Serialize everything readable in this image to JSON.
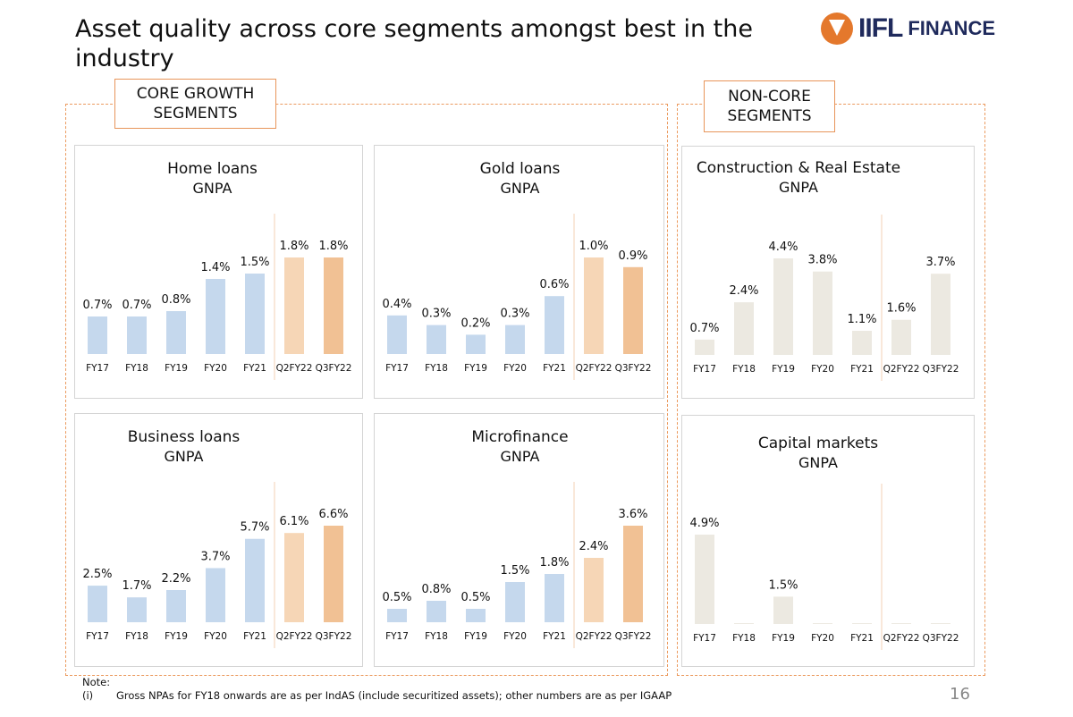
{
  "title": "Asset quality across core segments amongst best in the industry",
  "logo": {
    "brand": "IIFL",
    "sub": "FINANCE"
  },
  "segments": {
    "core": "CORE GROWTH SEGMENTS",
    "noncore": "NON-CORE SEGMENTS"
  },
  "colors": {
    "blue": "#c5d8ed",
    "q2": "#f6d6b6",
    "q3": "#f1c194",
    "beige": "#ece9e1",
    "divider": "#f3d2b5",
    "dash": "#eb9a5e"
  },
  "chart_data": [
    {
      "type": "bar",
      "id": "home",
      "title": "Home loans",
      "subtitle": "GNPA",
      "categories": [
        "FY17",
        "FY18",
        "FY19",
        "FY20",
        "FY21",
        "Q2FY22",
        "Q3FY22"
      ],
      "values": [
        0.7,
        0.7,
        0.8,
        1.4,
        1.5,
        1.8,
        1.8
      ],
      "labels": [
        "0.7%",
        "0.7%",
        "0.8%",
        "1.4%",
        "1.5%",
        "1.8%",
        "1.8%"
      ],
      "palette": "core",
      "unit": "%"
    },
    {
      "type": "bar",
      "id": "gold",
      "title": "Gold loans",
      "subtitle": "GNPA",
      "categories": [
        "FY17",
        "FY18",
        "FY19",
        "FY20",
        "FY21",
        "Q2FY22",
        "Q3FY22"
      ],
      "values": [
        0.4,
        0.3,
        0.2,
        0.3,
        0.6,
        1.0,
        0.9
      ],
      "labels": [
        "0.4%",
        "0.3%",
        "0.2%",
        "0.3%",
        "0.6%",
        "1.0%",
        "0.9%"
      ],
      "palette": "core",
      "unit": "%"
    },
    {
      "type": "bar",
      "id": "construction",
      "title": "Construction & Real Estate",
      "subtitle": "GNPA",
      "categories": [
        "FY17",
        "FY18",
        "FY19",
        "FY20",
        "FY21",
        "Q2FY22",
        "Q3FY22"
      ],
      "values": [
        0.7,
        2.4,
        4.4,
        3.8,
        1.1,
        1.6,
        3.7
      ],
      "labels": [
        "0.7%",
        "2.4%",
        "4.4%",
        "3.8%",
        "1.1%",
        "1.6%",
        "3.7%"
      ],
      "palette": "noncore",
      "unit": "%"
    },
    {
      "type": "bar",
      "id": "business",
      "title": "Business loans",
      "subtitle": "GNPA",
      "categories": [
        "FY17",
        "FY18",
        "FY19",
        "FY20",
        "FY21",
        "Q2FY22",
        "Q3FY22"
      ],
      "values": [
        2.5,
        1.7,
        2.2,
        3.7,
        5.7,
        6.1,
        6.6
      ],
      "labels": [
        "2.5%",
        "1.7%",
        "2.2%",
        "3.7%",
        "5.7%",
        "6.1%",
        "6.6%"
      ],
      "palette": "core",
      "unit": "%"
    },
    {
      "type": "bar",
      "id": "microfinance",
      "title": "Microfinance",
      "subtitle": "GNPA",
      "categories": [
        "FY17",
        "FY18",
        "FY19",
        "FY20",
        "FY21",
        "Q2FY22",
        "Q3FY22"
      ],
      "values": [
        0.5,
        0.8,
        0.5,
        1.5,
        1.8,
        2.4,
        3.6
      ],
      "labels": [
        "0.5%",
        "0.8%",
        "0.5%",
        "1.5%",
        "1.8%",
        "2.4%",
        "3.6%"
      ],
      "palette": "core",
      "unit": "%"
    },
    {
      "type": "bar",
      "id": "capital",
      "title": "Capital markets",
      "subtitle": "GNPA",
      "categories": [
        "FY17",
        "FY18",
        "FY19",
        "FY20",
        "FY21",
        "Q2FY22",
        "Q3FY22"
      ],
      "values": [
        4.9,
        0,
        1.5,
        0,
        0,
        0,
        0
      ],
      "labels": [
        "4.9%",
        "",
        "1.5%",
        "",
        "",
        "",
        ""
      ],
      "palette": "noncore",
      "unit": "%"
    }
  ],
  "note": {
    "heading": "Note:",
    "num": "(i)",
    "text": "Gross NPAs for FY18 onwards are as per IndAS (include securitized assets); other numbers are as per IGAAP"
  },
  "page_number": "16"
}
